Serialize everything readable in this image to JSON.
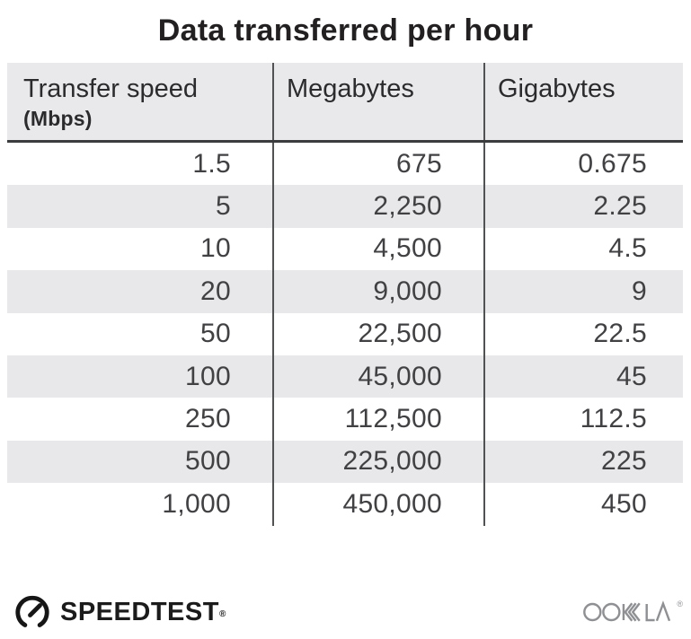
{
  "title": "Data transferred per hour",
  "table": {
    "header": {
      "col1_label": "Transfer speed",
      "col1_sublabel": "(Mbps)",
      "col2_label": "Megabytes",
      "col3_label": "Gigabytes"
    },
    "rows": [
      [
        "1.5",
        "675",
        "0.675"
      ],
      [
        "5",
        "2,250",
        "2.25"
      ],
      [
        "10",
        "4,500",
        "4.5"
      ],
      [
        "20",
        "9,000",
        "9"
      ],
      [
        "50",
        "22,500",
        "22.5"
      ],
      [
        "100",
        "45,000",
        "45"
      ],
      [
        "250",
        "112,500",
        "112.5"
      ],
      [
        "500",
        "225,000",
        "225"
      ],
      [
        "1,000",
        "450,000",
        "450"
      ]
    ]
  },
  "chart_data": {
    "type": "table",
    "title": "Data transferred per hour",
    "columns": [
      "Transfer speed (Mbps)",
      "Megabytes",
      "Gigabytes"
    ],
    "rows": [
      [
        1.5,
        675,
        0.675
      ],
      [
        5,
        2250,
        2.25
      ],
      [
        10,
        4500,
        4.5
      ],
      [
        20,
        9000,
        9
      ],
      [
        50,
        22500,
        22.5
      ],
      [
        100,
        45000,
        45
      ],
      [
        250,
        112500,
        112.5
      ],
      [
        500,
        225000,
        225
      ],
      [
        1000,
        450000,
        450
      ]
    ]
  },
  "footer": {
    "speedtest_label": "SPEEDTEST",
    "speedtest_reg": "®",
    "ookla_label": "OOKLA",
    "ookla_reg": "®"
  },
  "colors": {
    "header_bg": "#e9e9ec",
    "stripe_bg": "#e8e8eb",
    "column_divider": "#515254",
    "header_rule": "#3b3c3e",
    "title_text": "#232021",
    "number_text": "#414144",
    "ookla_gray": "#8f9093",
    "speedtest_black": "#1b1b1b"
  }
}
